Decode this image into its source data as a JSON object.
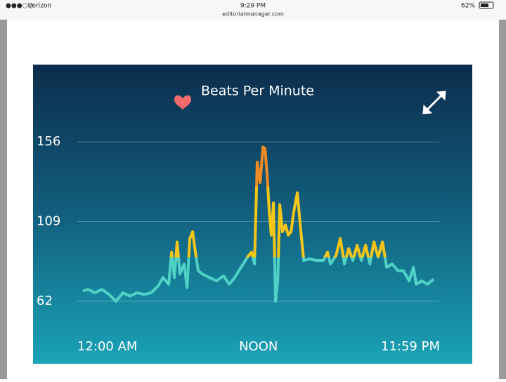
{
  "status_bar": {
    "carrier": "Verizon",
    "time": "9:29 PM",
    "url": "editorialmanager.com",
    "battery": "62%"
  },
  "chart_data": {
    "type": "line",
    "title": "Beats Per Minute",
    "x": [
      0,
      0.34,
      0.82,
      1.3,
      1.78,
      2.26,
      2.74,
      3.22,
      3.7,
      4.18,
      4.66,
      5.14,
      5.48,
      5.87,
      6.06,
      6.25,
      6.44,
      6.63,
      6.92,
      7.12,
      7.31,
      7.5,
      7.69,
      7.88,
      8.17,
      8.65,
      9.13,
      9.62,
      10,
      10.38,
      10.67,
      10.96,
      11.25,
      11.54,
      11.73,
      11.92,
      12.12,
      12.31,
      12.45,
      12.6,
      12.74,
      12.88,
      13.03,
      13.17,
      13.32,
      13.46,
      13.65,
      13.85,
      14.04,
      14.23,
      14.42,
      14.66,
      14.86,
      15.1,
      15.48,
      15.96,
      16.44,
      16.73,
      16.92,
      17.31,
      17.6,
      17.88,
      18.17,
      18.46,
      18.75,
      19.04,
      19.33,
      19.62,
      19.9,
      20.19,
      20.48,
      20.77,
      21.15,
      21.54,
      21.92,
      22.31,
      22.6,
      22.79,
      23.17,
      23.56,
      23.98
    ],
    "series": [
      {
        "name": "Heart rate",
        "colors": [
          "#f08a24",
          "#f5c518",
          "#4fd1c5"
        ],
        "values": [
          68,
          69,
          67,
          69,
          66,
          62,
          67,
          65,
          67,
          66,
          67,
          71,
          76,
          72,
          91,
          76,
          97,
          78,
          84,
          70,
          99,
          103,
          91,
          80,
          78,
          76,
          74,
          77,
          72,
          76,
          80,
          84,
          88,
          91,
          84,
          144,
          132,
          153,
          152,
          136,
          115,
          101,
          120,
          62,
          74,
          119,
          103,
          107,
          101,
          103,
          115,
          126,
          107,
          86,
          87,
          86,
          86,
          91,
          84,
          89,
          99,
          84,
          93,
          86,
          95,
          86,
          95,
          84,
          97,
          88,
          97,
          82,
          84,
          80,
          80,
          74,
          82,
          72,
          74,
          72,
          75
        ]
      }
    ],
    "xlim": [
      0,
      23.98
    ],
    "xticks": [
      {
        "value": 0,
        "label": "12:00 AM"
      },
      {
        "value": 12,
        "label": "NOON"
      },
      {
        "value": 23.98,
        "label": "11:59 PM"
      }
    ],
    "ylim": [
      45,
      161
    ],
    "yticks": [
      62,
      109,
      156
    ],
    "grid": true
  }
}
